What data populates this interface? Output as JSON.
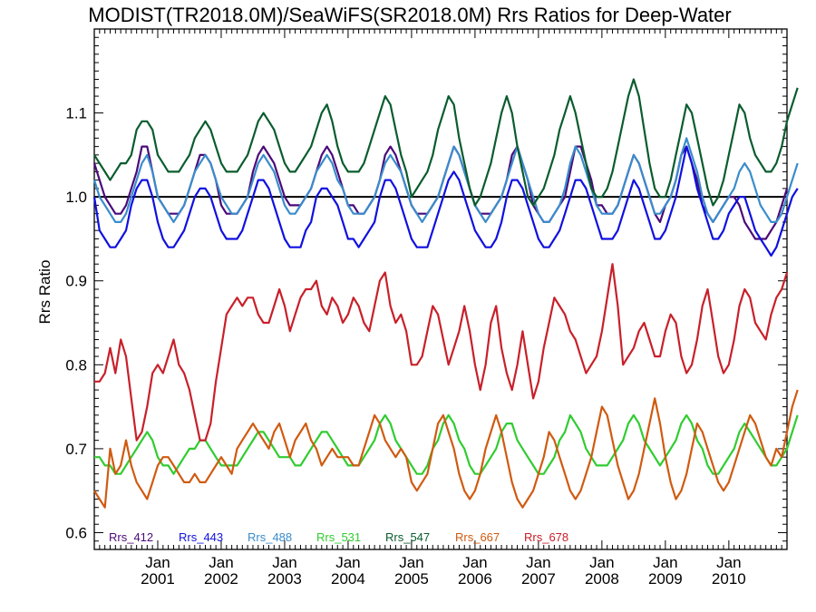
{
  "chart_data": {
    "type": "line",
    "title": "MODIST(TR2018.0M)/SeaWiFS(SR2018.0M)  Rrs Ratios for Deep-Water",
    "xlabel": "",
    "ylabel": "Rrs Ratio",
    "x_start": "2000-01",
    "x_step": "month",
    "xlim": [
      "2000-01",
      "2010-12"
    ],
    "ylim": [
      0.58,
      1.2
    ],
    "yticks": [
      "0.6",
      "0.7",
      "0.8",
      "0.9",
      "1.0",
      "1.1"
    ],
    "xtick_month_label": "Jan",
    "xticks": [
      "2001",
      "2002",
      "2003",
      "2004",
      "2005",
      "2006",
      "2007",
      "2008",
      "2009",
      "2010"
    ],
    "reference_line": 1.0,
    "grid": false,
    "legend_placement": "bottom-left, inside plot",
    "series": [
      {
        "name": "Rrs_412",
        "color": "#4b0a7a",
        "values": [
          1.04,
          1.02,
          1.0,
          0.99,
          0.98,
          0.98,
          0.99,
          1.01,
          1.03,
          1.06,
          1.06,
          1.03,
          1.0,
          0.99,
          0.98,
          0.98,
          0.98,
          0.99,
          1.01,
          1.03,
          1.05,
          1.05,
          1.04,
          1.02,
          0.99,
          0.98,
          0.98,
          0.98,
          0.99,
          1.0,
          1.03,
          1.05,
          1.06,
          1.05,
          1.04,
          1.02,
          1.0,
          0.99,
          0.99,
          0.99,
          1.0,
          1.01,
          1.03,
          1.05,
          1.06,
          1.05,
          1.03,
          1.01,
          0.99,
          0.99,
          0.98,
          0.98,
          0.99,
          1.0,
          1.02,
          1.05,
          1.06,
          1.05,
          1.03,
          1.01,
          0.99,
          0.98,
          0.98,
          0.98,
          0.99,
          1.0,
          1.02,
          1.04,
          1.06,
          1.05,
          1.03,
          1.01,
          0.99,
          0.98,
          0.98,
          0.98,
          0.99,
          1.0,
          1.02,
          1.05,
          1.06,
          1.04,
          1.02,
          0.99,
          0.98,
          0.97,
          0.97,
          0.98,
          0.99,
          1.0,
          1.03,
          1.06,
          1.06,
          1.04,
          1.02,
          0.99,
          0.99,
          0.98,
          0.98,
          0.99,
          1.01,
          1.03,
          1.05,
          1.04,
          1.02,
          1.0,
          0.98,
          0.97,
          0.99,
          1.0,
          1.02,
          1.05,
          1.06,
          1.04,
          1.02,
          0.99,
          0.98,
          0.97,
          0.98,
          0.99,
          1.0,
          1.0,
          0.99,
          0.97,
          0.96,
          0.95,
          0.95,
          0.95,
          0.96,
          0.97,
          0.99,
          1.01
        ]
      },
      {
        "name": "Rrs_443",
        "color": "#1010e0",
        "values": [
          1.0,
          0.96,
          0.95,
          0.94,
          0.94,
          0.95,
          0.96,
          0.99,
          1.01,
          1.02,
          1.02,
          1.0,
          0.97,
          0.95,
          0.94,
          0.94,
          0.95,
          0.96,
          0.98,
          1.0,
          1.01,
          1.01,
          1.0,
          0.98,
          0.96,
          0.95,
          0.95,
          0.95,
          0.96,
          0.98,
          1.0,
          1.02,
          1.02,
          1.01,
          0.99,
          0.97,
          0.95,
          0.94,
          0.94,
          0.94,
          0.96,
          0.97,
          1.0,
          1.01,
          1.01,
          1.0,
          0.99,
          0.97,
          0.95,
          0.95,
          0.94,
          0.95,
          0.96,
          0.97,
          1.0,
          1.02,
          1.02,
          1.01,
          0.99,
          0.97,
          0.95,
          0.94,
          0.94,
          0.94,
          0.96,
          0.98,
          1.0,
          1.02,
          1.03,
          1.02,
          1.0,
          0.98,
          0.96,
          0.95,
          0.94,
          0.94,
          0.95,
          0.97,
          1.0,
          1.02,
          1.02,
          1.01,
          0.99,
          0.97,
          0.95,
          0.94,
          0.94,
          0.95,
          0.96,
          0.98,
          1.0,
          1.02,
          1.02,
          1.01,
          0.99,
          0.97,
          0.95,
          0.95,
          0.95,
          0.96,
          0.98,
          1.0,
          1.02,
          1.01,
          0.99,
          0.97,
          0.95,
          0.95,
          0.96,
          0.98,
          1.0,
          1.03,
          1.06,
          1.04,
          1.01,
          0.99,
          0.97,
          0.95,
          0.95,
          0.96,
          0.98,
          0.99,
          1.0,
          1.0,
          0.98,
          0.96,
          0.95,
          0.94,
          0.93,
          0.94,
          0.96,
          0.98,
          1.0,
          1.01
        ]
      },
      {
        "name": "Rrs_488",
        "color": "#3a8ccc",
        "values": [
          1.02,
          1.0,
          0.99,
          0.98,
          0.97,
          0.97,
          0.98,
          1.0,
          1.02,
          1.04,
          1.05,
          1.03,
          1.0,
          0.99,
          0.98,
          0.97,
          0.98,
          0.99,
          1.01,
          1.03,
          1.04,
          1.05,
          1.04,
          1.02,
          1.0,
          0.99,
          0.98,
          0.98,
          0.99,
          1.0,
          1.02,
          1.04,
          1.05,
          1.04,
          1.03,
          1.01,
          0.99,
          0.98,
          0.98,
          0.99,
          1.0,
          1.01,
          1.03,
          1.04,
          1.05,
          1.04,
          1.02,
          1.01,
          0.99,
          0.98,
          0.98,
          0.98,
          0.99,
          1.0,
          1.02,
          1.04,
          1.05,
          1.04,
          1.03,
          1.01,
          0.99,
          0.98,
          0.97,
          0.98,
          0.99,
          1.0,
          1.02,
          1.04,
          1.06,
          1.05,
          1.03,
          1.01,
          0.99,
          0.98,
          0.97,
          0.98,
          0.99,
          1.0,
          1.02,
          1.04,
          1.06,
          1.04,
          1.02,
          1.0,
          0.98,
          0.97,
          0.97,
          0.98,
          0.99,
          1.01,
          1.04,
          1.06,
          1.05,
          1.03,
          1.01,
          0.99,
          0.98,
          0.98,
          0.98,
          0.99,
          1.01,
          1.03,
          1.05,
          1.04,
          1.02,
          1.0,
          0.98,
          0.98,
          0.99,
          1.0,
          1.02,
          1.05,
          1.07,
          1.05,
          1.03,
          1.0,
          0.98,
          0.97,
          0.98,
          0.99,
          1.0,
          1.01,
          1.03,
          1.04,
          1.03,
          1.01,
          0.99,
          0.98,
          0.97,
          0.97,
          0.98,
          1.0,
          1.02,
          1.04
        ]
      },
      {
        "name": "Rrs_531",
        "color": "#30cc30",
        "values": [
          0.69,
          0.69,
          0.68,
          0.68,
          0.67,
          0.67,
          0.68,
          0.69,
          0.7,
          0.71,
          0.72,
          0.71,
          0.69,
          0.68,
          0.68,
          0.67,
          0.68,
          0.69,
          0.7,
          0.7,
          0.71,
          0.71,
          0.7,
          0.69,
          0.68,
          0.68,
          0.68,
          0.68,
          0.69,
          0.7,
          0.71,
          0.72,
          0.72,
          0.71,
          0.7,
          0.69,
          0.69,
          0.69,
          0.68,
          0.68,
          0.69,
          0.7,
          0.71,
          0.72,
          0.72,
          0.71,
          0.7,
          0.69,
          0.68,
          0.68,
          0.68,
          0.69,
          0.7,
          0.71,
          0.73,
          0.74,
          0.73,
          0.71,
          0.7,
          0.69,
          0.68,
          0.67,
          0.67,
          0.68,
          0.7,
          0.71,
          0.73,
          0.74,
          0.73,
          0.71,
          0.7,
          0.68,
          0.67,
          0.67,
          0.68,
          0.69,
          0.7,
          0.72,
          0.73,
          0.73,
          0.71,
          0.7,
          0.69,
          0.68,
          0.67,
          0.67,
          0.68,
          0.69,
          0.71,
          0.72,
          0.74,
          0.73,
          0.72,
          0.7,
          0.69,
          0.68,
          0.68,
          0.68,
          0.69,
          0.7,
          0.71,
          0.73,
          0.74,
          0.73,
          0.71,
          0.7,
          0.69,
          0.68,
          0.69,
          0.7,
          0.71,
          0.73,
          0.74,
          0.73,
          0.71,
          0.7,
          0.68,
          0.67,
          0.67,
          0.68,
          0.69,
          0.7,
          0.72,
          0.73,
          0.72,
          0.71,
          0.7,
          0.69,
          0.68,
          0.68,
          0.69,
          0.7,
          0.72,
          0.74
        ]
      },
      {
        "name": "Rrs_547",
        "color": "#0a5c2e",
        "values": [
          1.05,
          1.04,
          1.03,
          1.02,
          1.03,
          1.04,
          1.04,
          1.05,
          1.08,
          1.09,
          1.09,
          1.08,
          1.05,
          1.04,
          1.03,
          1.03,
          1.03,
          1.04,
          1.05,
          1.07,
          1.08,
          1.09,
          1.08,
          1.06,
          1.04,
          1.03,
          1.03,
          1.03,
          1.04,
          1.05,
          1.07,
          1.09,
          1.1,
          1.09,
          1.08,
          1.06,
          1.04,
          1.03,
          1.03,
          1.04,
          1.05,
          1.06,
          1.08,
          1.1,
          1.11,
          1.09,
          1.06,
          1.04,
          1.03,
          1.03,
          1.03,
          1.04,
          1.06,
          1.08,
          1.1,
          1.12,
          1.11,
          1.08,
          1.05,
          1.03,
          1.0,
          1.01,
          1.02,
          1.03,
          1.05,
          1.08,
          1.1,
          1.12,
          1.11,
          1.07,
          1.04,
          1.01,
          0.99,
          1.0,
          1.02,
          1.04,
          1.07,
          1.1,
          1.12,
          1.1,
          1.06,
          1.03,
          1.0,
          0.99,
          1.0,
          1.01,
          1.03,
          1.05,
          1.08,
          1.1,
          1.12,
          1.1,
          1.07,
          1.04,
          1.01,
          1.0,
          1.0,
          1.01,
          1.03,
          1.06,
          1.09,
          1.12,
          1.14,
          1.12,
          1.08,
          1.04,
          1.01,
          1.0,
          1.0,
          1.02,
          1.05,
          1.08,
          1.11,
          1.1,
          1.07,
          1.04,
          1.01,
          0.99,
          1.0,
          1.02,
          1.05,
          1.08,
          1.11,
          1.1,
          1.07,
          1.05,
          1.04,
          1.03,
          1.03,
          1.04,
          1.06,
          1.09,
          1.11,
          1.13
        ]
      },
      {
        "name": "Rrs_667",
        "color": "#d05a10",
        "values": [
          0.65,
          0.64,
          0.63,
          0.7,
          0.67,
          0.68,
          0.71,
          0.68,
          0.66,
          0.65,
          0.64,
          0.66,
          0.68,
          0.69,
          0.69,
          0.68,
          0.67,
          0.66,
          0.66,
          0.67,
          0.66,
          0.66,
          0.67,
          0.68,
          0.69,
          0.68,
          0.67,
          0.7,
          0.71,
          0.72,
          0.73,
          0.72,
          0.71,
          0.7,
          0.72,
          0.73,
          0.71,
          0.69,
          0.71,
          0.72,
          0.73,
          0.71,
          0.7,
          0.68,
          0.69,
          0.7,
          0.69,
          0.69,
          0.69,
          0.68,
          0.68,
          0.7,
          0.72,
          0.74,
          0.73,
          0.71,
          0.7,
          0.69,
          0.7,
          0.69,
          0.66,
          0.65,
          0.66,
          0.67,
          0.7,
          0.73,
          0.74,
          0.72,
          0.7,
          0.67,
          0.65,
          0.64,
          0.65,
          0.67,
          0.7,
          0.72,
          0.74,
          0.72,
          0.69,
          0.66,
          0.64,
          0.63,
          0.64,
          0.65,
          0.67,
          0.69,
          0.72,
          0.71,
          0.69,
          0.67,
          0.65,
          0.64,
          0.65,
          0.67,
          0.69,
          0.72,
          0.75,
          0.74,
          0.71,
          0.68,
          0.66,
          0.64,
          0.65,
          0.67,
          0.7,
          0.73,
          0.76,
          0.73,
          0.69,
          0.66,
          0.64,
          0.65,
          0.67,
          0.7,
          0.73,
          0.72,
          0.7,
          0.68,
          0.66,
          0.65,
          0.66,
          0.68,
          0.7,
          0.72,
          0.74,
          0.73,
          0.71,
          0.69,
          0.68,
          0.7,
          0.69,
          0.72,
          0.75,
          0.77
        ]
      },
      {
        "name": "Rrs_678",
        "color": "#c8202a",
        "values": [
          0.78,
          0.78,
          0.79,
          0.82,
          0.79,
          0.83,
          0.81,
          0.76,
          0.71,
          0.72,
          0.75,
          0.79,
          0.8,
          0.79,
          0.81,
          0.83,
          0.8,
          0.79,
          0.77,
          0.74,
          0.71,
          0.71,
          0.73,
          0.78,
          0.82,
          0.86,
          0.87,
          0.88,
          0.87,
          0.88,
          0.88,
          0.86,
          0.85,
          0.85,
          0.87,
          0.89,
          0.87,
          0.84,
          0.86,
          0.88,
          0.89,
          0.89,
          0.9,
          0.87,
          0.86,
          0.88,
          0.87,
          0.85,
          0.86,
          0.88,
          0.87,
          0.85,
          0.84,
          0.87,
          0.9,
          0.91,
          0.87,
          0.85,
          0.86,
          0.84,
          0.8,
          0.8,
          0.81,
          0.84,
          0.87,
          0.86,
          0.83,
          0.8,
          0.82,
          0.84,
          0.87,
          0.84,
          0.8,
          0.77,
          0.8,
          0.85,
          0.87,
          0.82,
          0.79,
          0.77,
          0.8,
          0.84,
          0.8,
          0.76,
          0.78,
          0.82,
          0.85,
          0.88,
          0.87,
          0.86,
          0.84,
          0.83,
          0.81,
          0.79,
          0.8,
          0.81,
          0.84,
          0.88,
          0.92,
          0.87,
          0.8,
          0.81,
          0.82,
          0.84,
          0.85,
          0.83,
          0.81,
          0.81,
          0.84,
          0.86,
          0.85,
          0.81,
          0.79,
          0.8,
          0.83,
          0.87,
          0.89,
          0.85,
          0.81,
          0.79,
          0.8,
          0.83,
          0.87,
          0.89,
          0.88,
          0.85,
          0.84,
          0.83,
          0.86,
          0.88,
          0.89,
          0.91
        ]
      }
    ]
  }
}
